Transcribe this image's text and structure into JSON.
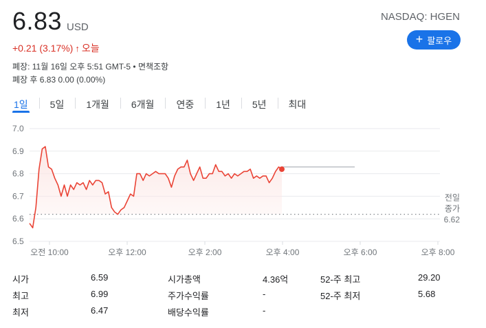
{
  "quote": {
    "price": "6.83",
    "currency": "USD",
    "exchange": "NASDAQ: HGEN",
    "change": "+0.21 (3.17%)",
    "change_arrow": "↑",
    "change_period": "오늘",
    "follow_label": "팔로우",
    "closed_line": "폐장: 11월 16일 오후 5:51 GMT-5 • 면책조항",
    "after_hours_line": "폐장 후 6.83 0.00 (0.00%)"
  },
  "tabs": [
    "1일",
    "5일",
    "1개월",
    "6개월",
    "연중",
    "1년",
    "5년",
    "최대"
  ],
  "active_tab": "1일",
  "chart_data": {
    "type": "line",
    "yticks": [
      "7.0",
      "6.9",
      "6.8",
      "6.7",
      "6.6",
      "6.5"
    ],
    "ylim": [
      6.5,
      7.0
    ],
    "xticks": [
      "오전 10:00",
      "오후 12:00",
      "오후 2:00",
      "오후 4:00",
      "오후 6:00",
      "오후 8:00"
    ],
    "prev_close": 6.62,
    "prev_close_label_1": "전일",
    "prev_close_label_2": "종가",
    "prev_close_value": "6.62",
    "after_hours_value": 6.83,
    "series": [
      {
        "values": [
          6.58,
          6.56,
          6.65,
          6.82,
          6.91,
          6.92,
          6.83,
          6.82,
          6.78,
          6.75,
          6.7,
          6.75,
          6.7,
          6.75,
          6.73,
          6.76,
          6.75,
          6.76,
          6.73,
          6.77,
          6.75,
          6.77,
          6.77,
          6.76,
          6.71,
          6.72,
          6.65,
          6.63,
          6.62,
          6.64,
          6.65,
          6.68,
          6.71,
          6.7,
          6.8,
          6.8,
          6.77,
          6.8,
          6.79,
          6.8,
          6.81,
          6.8,
          6.8,
          6.8,
          6.78,
          6.74,
          6.79,
          6.82,
          6.83,
          6.83,
          6.86,
          6.8,
          6.77,
          6.8,
          6.83,
          6.78,
          6.78,
          6.8,
          6.8,
          6.84,
          6.81,
          6.81,
          6.79,
          6.8,
          6.78,
          6.8,
          6.79,
          6.8,
          6.81,
          6.81,
          6.82,
          6.78,
          6.79,
          6.78,
          6.79,
          6.79,
          6.76,
          6.78,
          6.81,
          6.83,
          6.82
        ],
        "color": "#ea4335"
      }
    ],
    "grid": true
  },
  "stats": [
    {
      "label": "시가",
      "value": "6.59"
    },
    {
      "label": "최고",
      "value": "6.99"
    },
    {
      "label": "최저",
      "value": "6.47"
    },
    {
      "label": "시가총액",
      "value": "4.36억"
    },
    {
      "label": "주가수익률",
      "value": "-"
    },
    {
      "label": "배당수익률",
      "value": "-"
    },
    {
      "label": "52-주 최고",
      "value": "29.20"
    },
    {
      "label": "52-주 최저",
      "value": "5.68"
    }
  ]
}
